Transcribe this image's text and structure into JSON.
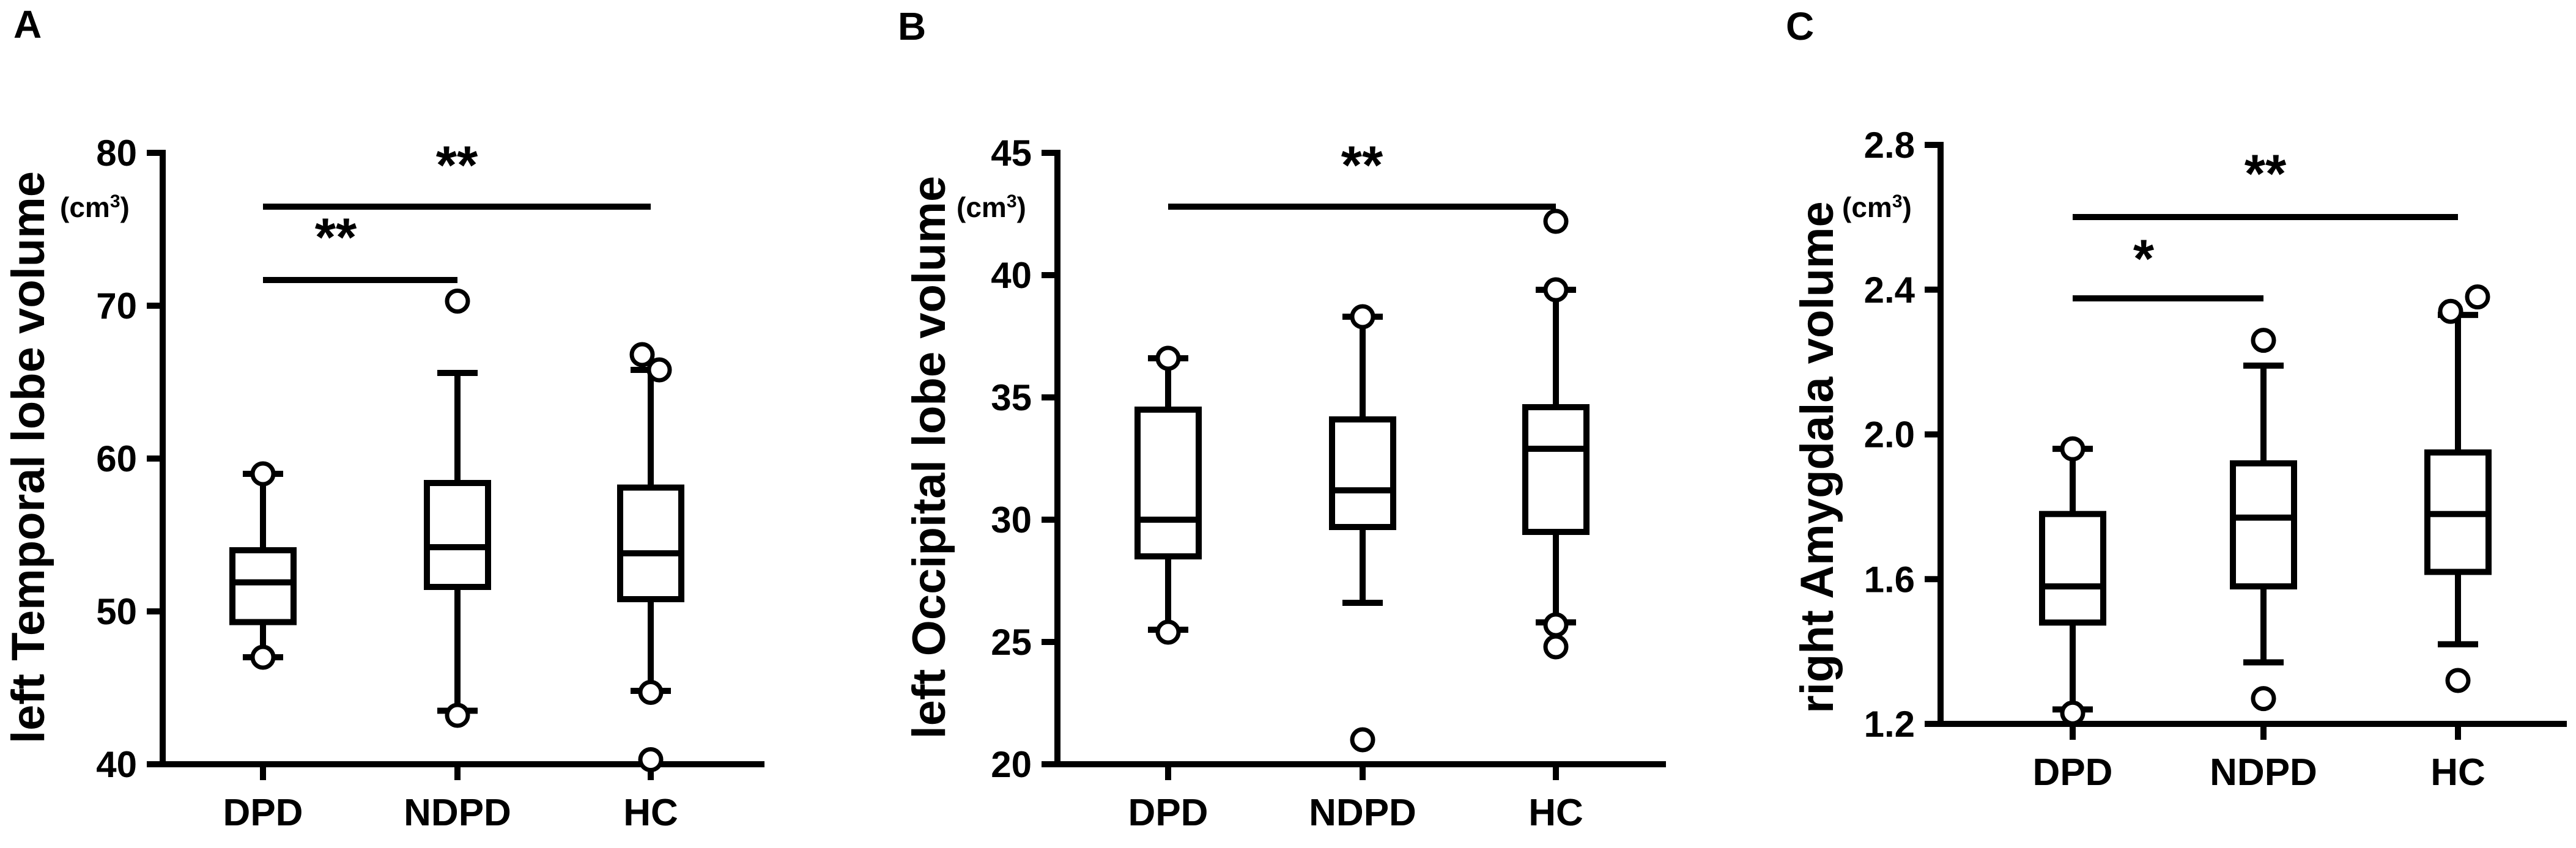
{
  "chart_data": [
    {
      "type": "box",
      "panel": "A",
      "ylabel": "left Temporal lobe volume",
      "unit": "(cm",
      "unit_sup": "3",
      "unit_close": ")",
      "ylim": [
        40,
        80
      ],
      "yticks": [
        40,
        50,
        60,
        70,
        80
      ],
      "categories": [
        "DPD",
        "NDPD",
        "HC"
      ],
      "boxes": [
        {
          "whisker_low": 47,
          "q1": 49.3,
          "median": 51.9,
          "q3": 54.0,
          "whisker_high": 59.0,
          "outliers": [
            59.0,
            47.0
          ]
        },
        {
          "whisker_low": 43.5,
          "q1": 51.6,
          "median": 54.2,
          "q3": 58.4,
          "whisker_high": 65.6,
          "outliers": [
            70.3,
            43.2
          ]
        },
        {
          "whisker_low": 44.8,
          "q1": 50.8,
          "median": 53.8,
          "q3": 58.1,
          "whisker_high": 65.8,
          "outliers": [
            66.8,
            65.8,
            44.7,
            40.3
          ]
        }
      ],
      "significance": [
        {
          "from": 0,
          "to": 2,
          "label": "**"
        },
        {
          "from": 0,
          "to": 1,
          "label": "**"
        }
      ]
    },
    {
      "type": "box",
      "panel": "B",
      "ylabel": "left Occipital lobe volume",
      "unit": "(cm",
      "unit_sup": "3",
      "unit_close": ")",
      "ylim": [
        20,
        45
      ],
      "yticks": [
        20,
        25,
        30,
        35,
        40,
        45
      ],
      "categories": [
        "DPD",
        "NDPD",
        "HC"
      ],
      "boxes": [
        {
          "whisker_low": 25.5,
          "q1": 28.5,
          "median": 30.0,
          "q3": 34.5,
          "whisker_high": 36.6,
          "outliers": [
            36.6,
            25.4
          ]
        },
        {
          "whisker_low": 26.6,
          "q1": 29.7,
          "median": 31.2,
          "q3": 34.1,
          "whisker_high": 38.3,
          "outliers": [
            38.3,
            21.0
          ]
        },
        {
          "whisker_low": 25.8,
          "q1": 29.5,
          "median": 32.9,
          "q3": 34.6,
          "whisker_high": 39.4,
          "outliers": [
            42.2,
            39.4,
            25.7,
            24.8
          ]
        }
      ],
      "significance": [
        {
          "from": 0,
          "to": 2,
          "label": "**"
        }
      ]
    },
    {
      "type": "box",
      "panel": "C",
      "ylabel": "right Amygdala volume",
      "unit": "(cm",
      "unit_sup": "3",
      "unit_close": ")",
      "ylim": [
        1.2,
        2.8
      ],
      "yticks": [
        1.2,
        1.6,
        2.0,
        2.4,
        2.8
      ],
      "yticklabels": [
        "1.2",
        "1.6",
        "2.0",
        "2.4",
        "2.8"
      ],
      "categories": [
        "DPD",
        "NDPD",
        "HC"
      ],
      "boxes": [
        {
          "whisker_low": 1.24,
          "q1": 1.48,
          "median": 1.58,
          "q3": 1.78,
          "whisker_high": 1.96,
          "outliers": [
            1.96,
            1.23
          ]
        },
        {
          "whisker_low": 1.37,
          "q1": 1.58,
          "median": 1.77,
          "q3": 1.92,
          "whisker_high": 2.19,
          "outliers": [
            2.26,
            1.27
          ]
        },
        {
          "whisker_low": 1.42,
          "q1": 1.62,
          "median": 1.78,
          "q3": 1.95,
          "whisker_high": 2.33,
          "outliers": [
            2.34,
            2.38,
            1.32
          ]
        }
      ],
      "significance": [
        {
          "from": 0,
          "to": 2,
          "label": "**"
        },
        {
          "from": 0,
          "to": 1,
          "label": "*"
        }
      ]
    }
  ]
}
